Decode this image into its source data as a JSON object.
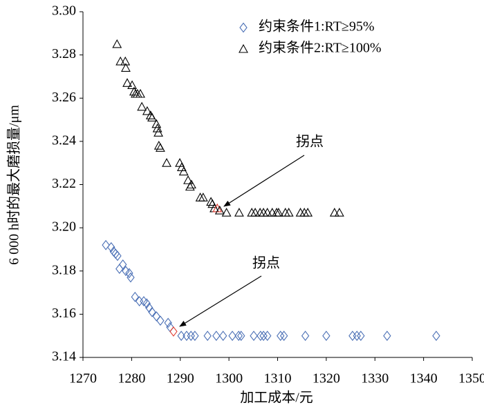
{
  "chart_data": {
    "type": "scatter",
    "x_label": "加工成本/元",
    "y_label": "6 000 h时的最大磨损量/μm",
    "xlim": [
      1270,
      1350
    ],
    "xticks": [
      1270,
      1280,
      1290,
      1300,
      1310,
      1320,
      1330,
      1340,
      1350
    ],
    "ylim": [
      3.14,
      3.3
    ],
    "yticks": [
      {
        "value": 3.14,
        "label": "3.14"
      },
      {
        "value": 3.16,
        "label": "3.16"
      },
      {
        "value": 3.18,
        "label": "3.18"
      },
      {
        "value": 3.2,
        "label": "3.20"
      },
      {
        "value": 3.22,
        "label": "3.22"
      },
      {
        "value": 3.24,
        "label": "3.24"
      },
      {
        "value": 3.26,
        "label": "3.26"
      },
      {
        "value": 3.28,
        "label": "3.28"
      },
      {
        "value": 3.3,
        "label": "3.30"
      }
    ],
    "legend": "upper right",
    "annotations": [
      "拐点",
      "拐点"
    ],
    "series": [
      {
        "name": "约束条件1:RT≥95%",
        "marker": "diamond",
        "color": "#4a6fb5",
        "highlight": {
          "index": 20,
          "color": "#e03c31"
        },
        "x": [
          1274.7,
          1275.8,
          1276.3,
          1276.7,
          1277.1,
          1277.5,
          1278.2,
          1278.8,
          1279.5,
          1279.8,
          1280.7,
          1281.6,
          1282.5,
          1283.1,
          1283.6,
          1284.2,
          1285.1,
          1285.9,
          1287.5,
          1287.9,
          1288.6,
          1290.2,
          1291.3,
          1292.2,
          1293.0,
          1295.6,
          1297.4,
          1298.8,
          1300.7,
          1302.0,
          1302.5,
          1305.1,
          1306.5,
          1307.1,
          1307.9,
          1310.6,
          1311.3,
          1315.7,
          1320.0,
          1325.4,
          1326.3,
          1327.1,
          1332.5,
          1342.6
        ],
        "y": [
          3.192,
          3.191,
          3.189,
          3.188,
          3.187,
          3.181,
          3.183,
          3.18,
          3.179,
          3.177,
          3.168,
          3.166,
          3.166,
          3.165,
          3.163,
          3.161,
          3.159,
          3.157,
          3.156,
          3.154,
          3.152,
          3.15,
          3.15,
          3.15,
          3.15,
          3.15,
          3.15,
          3.15,
          3.15,
          3.15,
          3.15,
          3.15,
          3.15,
          3.15,
          3.15,
          3.15,
          3.15,
          3.15,
          3.15,
          3.15,
          3.15,
          3.15,
          3.15,
          3.15
        ]
      },
      {
        "name": "约束条件2:RT≥100%",
        "marker": "triangle",
        "color": "#000000",
        "highlight": {
          "index": 31,
          "color": "#e03c31"
        },
        "x": [
          1277.0,
          1277.7,
          1278.7,
          1278.8,
          1279.1,
          1280.1,
          1280.5,
          1280.8,
          1281.2,
          1281.8,
          1282.1,
          1283.2,
          1283.9,
          1284.2,
          1285.1,
          1285.3,
          1285.5,
          1285.6,
          1285.9,
          1287.2,
          1289.9,
          1290.3,
          1290.7,
          1291.6,
          1292.0,
          1292.3,
          1294.1,
          1294.7,
          1296.3,
          1296.6,
          1297.0,
          1297.6,
          1298.1,
          1299.5,
          1302.1,
          1304.7,
          1305.4,
          1306.4,
          1307.1,
          1307.9,
          1308.9,
          1309.8,
          1310.2,
          1311.6,
          1312.3,
          1314.7,
          1315.5,
          1316.2,
          1321.7,
          1322.7
        ],
        "y": [
          3.285,
          3.277,
          3.277,
          3.274,
          3.267,
          3.266,
          3.263,
          3.262,
          3.262,
          3.262,
          3.256,
          3.254,
          3.252,
          3.251,
          3.248,
          3.246,
          3.244,
          3.238,
          3.237,
          3.23,
          3.23,
          3.228,
          3.226,
          3.222,
          3.219,
          3.22,
          3.214,
          3.214,
          3.212,
          3.211,
          3.209,
          3.209,
          3.208,
          3.207,
          3.207,
          3.207,
          3.207,
          3.207,
          3.207,
          3.207,
          3.207,
          3.207,
          3.207,
          3.207,
          3.207,
          3.207,
          3.207,
          3.207,
          3.207,
          3.207
        ]
      }
    ]
  }
}
